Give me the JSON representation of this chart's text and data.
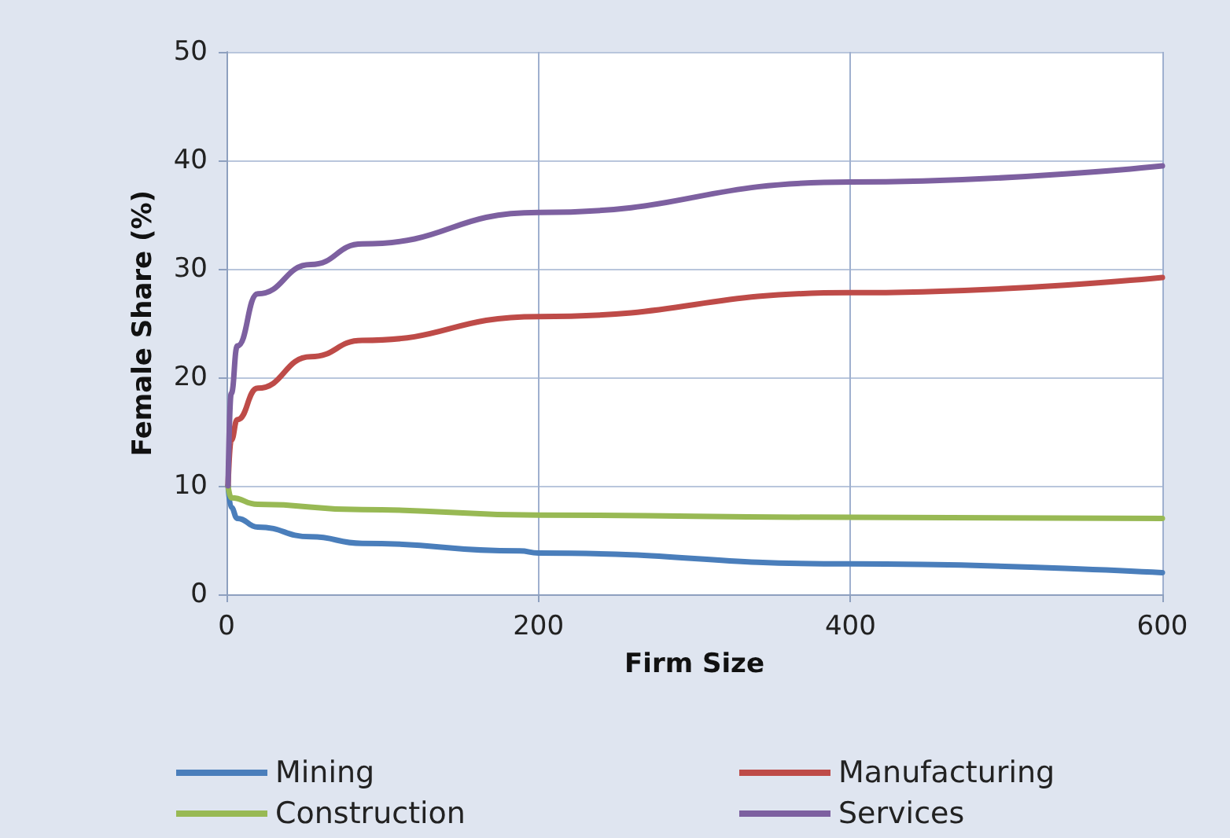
{
  "chart_data": {
    "type": "line",
    "xlabel": "Firm Size",
    "ylabel": "Female Share (%)",
    "xlim": [
      0,
      600
    ],
    "xticks": [
      0,
      200,
      400,
      600
    ],
    "ylim": [
      0,
      50
    ],
    "yticks": [
      0,
      10,
      20,
      30,
      40,
      50
    ],
    "grid": true,
    "legend": "bottom",
    "marker": "none",
    "line_style": "solid",
    "series": [
      {
        "name": "Mining",
        "color": "#4a7ebb",
        "x": [
          1,
          3,
          7,
          20,
          54,
          87,
          188,
          200,
          400,
          600
        ],
        "values": [
          10,
          8.0,
          7.0,
          6.2,
          5.3,
          4.7,
          4.0,
          3.8,
          2.8,
          2.0
        ]
      },
      {
        "name": "Manufacturing",
        "color": "#be4b48",
        "x": [
          1,
          3,
          7,
          20,
          54,
          87,
          200,
          400,
          600
        ],
        "values": [
          10,
          14.2,
          16.1,
          19.0,
          21.9,
          23.4,
          25.6,
          27.8,
          29.2
        ]
      },
      {
        "name": "Construction",
        "color": "#98b954",
        "x": [
          1,
          3,
          20,
          87,
          200,
          400,
          600
        ],
        "values": [
          10,
          8.9,
          8.3,
          7.8,
          7.3,
          7.1,
          7.0
        ]
      },
      {
        "name": "Services",
        "color": "#7d60a0",
        "x": [
          1,
          3,
          7,
          20,
          54,
          87,
          200,
          400,
          600
        ],
        "values": [
          10,
          18.5,
          22.9,
          27.7,
          30.4,
          32.3,
          35.2,
          38.0,
          39.5
        ]
      }
    ]
  }
}
